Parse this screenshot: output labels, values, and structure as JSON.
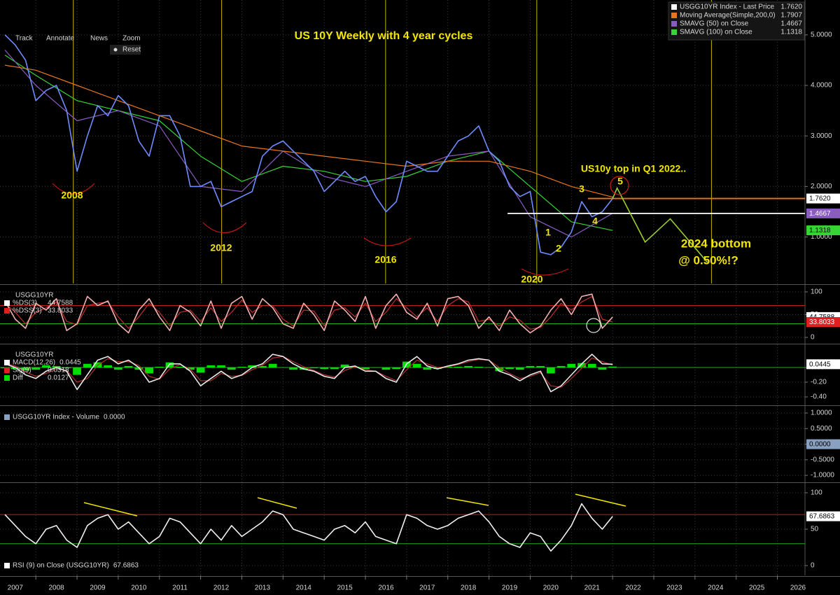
{
  "toolbar": [
    "Track",
    "Annotate",
    "News",
    "Zoom",
    "Reset"
  ],
  "x_axis": {
    "xlim": [
      2007.13,
      2026.67
    ],
    "xticks": [
      2007,
      2008,
      2009,
      2010,
      2011,
      2012,
      2013,
      2014,
      2015,
      2016,
      2017,
      2018,
      2019,
      2020,
      2021,
      2022,
      2023,
      2024,
      2025,
      2026
    ],
    "x": [
      2007.25,
      2007.5,
      2007.75,
      2008,
      2008.25,
      2008.5,
      2008.75,
      2009,
      2009.25,
      2009.5,
      2009.75,
      2010,
      2010.25,
      2010.5,
      2010.75,
      2011,
      2011.25,
      2011.5,
      2011.75,
      2012,
      2012.25,
      2012.5,
      2012.75,
      2013,
      2013.25,
      2013.5,
      2013.75,
      2014,
      2014.25,
      2014.5,
      2014.75,
      2015,
      2015.25,
      2015.5,
      2015.75,
      2016,
      2016.25,
      2016.5,
      2016.75,
      2017,
      2017.25,
      2017.5,
      2017.75,
      2018,
      2018.25,
      2018.5,
      2018.75,
      2019,
      2019.25,
      2019.5,
      2019.75,
      2020,
      2020.25,
      2020.5,
      2020.75,
      2021,
      2021.25,
      2021.5,
      2021.75,
      2022
    ]
  },
  "chart_data": [
    {
      "type": "line",
      "title": "US 10Y Weekly with 4 year cycles",
      "legend": "upper right",
      "grid": true,
      "ylim": [
        0.08,
        5.69
      ],
      "yticks": [
        {
          "value": 1,
          "label": "1.0000"
        },
        {
          "value": 2,
          "label": "2.0000"
        },
        {
          "value": 3,
          "label": "3.0000"
        },
        {
          "value": 4,
          "label": "4.0000"
        },
        {
          "value": 5,
          "label": "5.0000"
        }
      ],
      "series": [
        {
          "name": "USGG10YR Index - Last Price",
          "color": "#ffffff",
          "line_color": "#6f8cff",
          "box": true,
          "last": 1.762,
          "last_label": "1.7620",
          "values": [
            5.0,
            4.8,
            4.5,
            3.7,
            3.9,
            4.0,
            3.5,
            2.3,
            3.0,
            3.6,
            3.4,
            3.8,
            3.6,
            2.9,
            2.6,
            3.4,
            3.4,
            3.0,
            2.0,
            2.0,
            2.1,
            1.6,
            1.7,
            1.8,
            1.9,
            2.6,
            2.8,
            2.9,
            2.7,
            2.5,
            2.3,
            1.9,
            2.1,
            2.3,
            2.1,
            2.2,
            1.8,
            1.5,
            1.7,
            2.5,
            2.4,
            2.3,
            2.3,
            2.6,
            2.9,
            3.0,
            3.2,
            2.7,
            2.5,
            2.0,
            1.8,
            1.9,
            0.7,
            0.65,
            0.8,
            1.1,
            1.7,
            1.4,
            1.5,
            1.76
          ]
        },
        {
          "name": "Moving Average(Simple,200,0)",
          "color": "#e8761e",
          "box": false,
          "last": 1.7907,
          "last_label": "1.7907",
          "x": [
            2007.25,
            2008,
            2009,
            2010,
            2011,
            2012,
            2013,
            2014,
            2015,
            2016,
            2017,
            2018,
            2019,
            2020,
            2021,
            2022
          ],
          "values": [
            4.4,
            4.3,
            4.0,
            3.7,
            3.4,
            3.1,
            2.8,
            2.7,
            2.6,
            2.5,
            2.4,
            2.5,
            2.5,
            2.3,
            2.0,
            1.79
          ]
        },
        {
          "name": "SMAVG (50)  on Close",
          "color": "#8a5cc0",
          "box": true,
          "last": 1.4667,
          "x": [
            2007.25,
            2008,
            2009,
            2010,
            2011,
            2012,
            2013,
            2014,
            2015,
            2016,
            2017,
            2018,
            2019,
            2020,
            2021,
            2022
          ],
          "values": [
            4.7,
            4.0,
            3.3,
            3.5,
            3.2,
            2.0,
            1.9,
            2.7,
            2.2,
            2.0,
            2.3,
            2.6,
            2.7,
            1.4,
            1.0,
            1.47
          ]
        },
        {
          "name": "SMAVG (100)  on Close",
          "color": "#36d436",
          "box": true,
          "last": 1.1318,
          "x": [
            2007.25,
            2008,
            2009,
            2010,
            2011,
            2012,
            2013,
            2014,
            2015,
            2016,
            2017,
            2018,
            2019,
            2020,
            2021,
            2022
          ],
          "values": [
            4.6,
            4.2,
            3.7,
            3.5,
            3.3,
            2.6,
            2.1,
            2.4,
            2.3,
            2.1,
            2.2,
            2.5,
            2.7,
            2.0,
            1.3,
            1.13
          ]
        }
      ],
      "cycle_lines": [
        2008.91,
        2012.51,
        2016.49,
        2020.16,
        2024.4
      ],
      "cycle_color": "#c8b400",
      "hlines": [
        {
          "value": 1.762,
          "x": 2021.4,
          "color": "#e8761e"
        },
        {
          "value": 1.4667,
          "x": 2019.45,
          "color": "#ffffff"
        }
      ],
      "projection": {
        "color": "#9acd32",
        "x": [
          2022,
          2022.11,
          2022.79,
          2023.4,
          2024.3
        ],
        "values": [
          1.76,
          1.97,
          0.9,
          1.36,
          0.5
        ]
      },
      "annotations": [
        "2008",
        "2012",
        "2016",
        "2020",
        "1",
        "2",
        "3",
        "4",
        "5",
        "US10y top in Q1 2022..",
        "2024 bottom",
        "@ 0.50%!?"
      ]
    },
    {
      "type": "line",
      "legend_title": "USGG10YR",
      "legend": "upper left",
      "grid": true,
      "ylim": [
        -12.3,
        113.8
      ],
      "yticks": [
        0,
        50,
        100
      ],
      "levels": [
        {
          "value": 70,
          "color": "#c02020"
        },
        {
          "value": 30,
          "color": "#20b020"
        }
      ],
      "series": [
        {
          "name": "%DS(3)",
          "color": "#ffffff",
          "line_color": "#f4b0b0",
          "box": true,
          "last": 44.7588,
          "values": [
            80,
            40,
            20,
            75,
            60,
            85,
            15,
            30,
            90,
            70,
            80,
            30,
            10,
            60,
            85,
            45,
            15,
            70,
            55,
            25,
            80,
            20,
            75,
            90,
            40,
            85,
            65,
            30,
            20,
            75,
            50,
            15,
            80,
            60,
            35,
            90,
            20,
            70,
            95,
            55,
            40,
            75,
            25,
            85,
            90,
            70,
            20,
            45,
            15,
            60,
            30,
            10,
            25,
            60,
            85,
            50,
            90,
            95,
            20,
            44.7588
          ]
        },
        {
          "name": "%DSS(3)",
          "color": "#e02020",
          "line_color": "#c03030",
          "box": true,
          "last": 33.8033,
          "values": [
            75,
            55,
            30,
            55,
            65,
            78,
            35,
            28,
            70,
            75,
            78,
            45,
            20,
            45,
            75,
            55,
            25,
            55,
            60,
            35,
            65,
            35,
            55,
            82,
            55,
            70,
            70,
            40,
            25,
            60,
            58,
            25,
            60,
            65,
            45,
            75,
            35,
            55,
            85,
            65,
            45,
            65,
            35,
            70,
            85,
            78,
            35,
            40,
            25,
            45,
            38,
            18,
            22,
            45,
            75,
            60,
            78,
            90,
            40,
            33.8033
          ]
        }
      ]
    },
    {
      "type": "line",
      "legend_title": "USGG10YR",
      "legend": "upper left",
      "grid": true,
      "ylim": [
        -0.505,
        0.305
      ],
      "yticks": [
        {
          "value": -0.4,
          "label": "-0.40"
        },
        {
          "value": -0.2,
          "label": "-0.20"
        },
        {
          "value": 0,
          "label": "0.00"
        }
      ],
      "levels": [
        {
          "value": 0,
          "color": "#20b020"
        }
      ],
      "series": [
        {
          "name": "MACD(12,26)",
          "color": "#ffffff",
          "line_color": "#e8e8e8",
          "box": true,
          "last": 0.0445,
          "values": [
            0.05,
            0.0,
            -0.1,
            -0.15,
            -0.05,
            0.0,
            -0.05,
            -0.3,
            -0.1,
            0.1,
            0.15,
            0.05,
            0.1,
            0.0,
            -0.2,
            -0.15,
            0.05,
            0.05,
            -0.05,
            -0.25,
            -0.15,
            -0.05,
            -0.15,
            -0.1,
            0.0,
            0.05,
            0.18,
            0.15,
            0.05,
            -0.02,
            -0.05,
            -0.12,
            -0.15,
            0.0,
            0.02,
            -0.05,
            -0.05,
            -0.15,
            -0.2,
            0.05,
            0.15,
            0.02,
            -0.02,
            0.02,
            0.05,
            0.1,
            0.12,
            0.1,
            -0.05,
            -0.1,
            -0.18,
            -0.1,
            -0.05,
            -0.33,
            -0.25,
            -0.1,
            0.05,
            0.18,
            0.05,
            0.0445
          ]
        },
        {
          "name": "Sig(9)",
          "color": "#e02020",
          "line_color": "#b03030",
          "box": false,
          "last": 0.0318,
          "values": [
            0.06,
            0.02,
            -0.06,
            -0.12,
            -0.08,
            -0.02,
            -0.04,
            -0.2,
            -0.15,
            0.03,
            0.12,
            0.08,
            0.08,
            0.03,
            -0.12,
            -0.16,
            -0.02,
            0.04,
            -0.02,
            -0.18,
            -0.18,
            -0.08,
            -0.12,
            -0.11,
            -0.03,
            0.03,
            0.13,
            0.15,
            0.08,
            0.01,
            -0.04,
            -0.1,
            -0.13,
            -0.04,
            0.01,
            -0.03,
            -0.05,
            -0.12,
            -0.18,
            -0.03,
            0.1,
            0.05,
            0.0,
            0.01,
            0.04,
            0.08,
            0.11,
            0.1,
            0.0,
            -0.08,
            -0.15,
            -0.12,
            -0.07,
            -0.25,
            -0.27,
            -0.15,
            -0.01,
            0.13,
            0.08,
            0.0318
          ]
        },
        {
          "name": "Diff",
          "type": "bar",
          "color": "#00e000",
          "box": false,
          "last": 0.0127,
          "values": [
            -0.01,
            -0.02,
            -0.04,
            -0.03,
            0.03,
            0.02,
            -0.01,
            -0.1,
            0.05,
            0.07,
            0.03,
            -0.03,
            0.02,
            -0.03,
            -0.08,
            0.01,
            0.07,
            0.01,
            -0.03,
            -0.07,
            0.03,
            0.03,
            -0.03,
            0.01,
            0.03,
            0.02,
            0.05,
            0,
            -0.03,
            -0.03,
            -0.01,
            -0.02,
            -0.02,
            0.04,
            0.01,
            -0.02,
            0,
            -0.03,
            -0.02,
            0.08,
            0.05,
            -0.03,
            -0.02,
            0.01,
            0.01,
            0.02,
            0.01,
            0,
            -0.05,
            -0.02,
            -0.03,
            0.02,
            0.02,
            -0.08,
            0.02,
            0.05,
            0.06,
            0.05,
            -0.03,
            0.0127
          ]
        }
      ]
    },
    {
      "type": "line",
      "legend": "upper left",
      "grid": true,
      "ylim": [
        -1.2,
        1.18
      ],
      "yticks": [
        {
          "value": -1,
          "label": "-1.0000"
        },
        {
          "value": -0.5,
          "label": "-0.5000"
        },
        {
          "value": 0,
          "label": "0.0000"
        },
        {
          "value": 0.5,
          "label": "0.5000"
        },
        {
          "value": 1,
          "label": "1.0000"
        }
      ],
      "series": [
        {
          "name": "USGG10YR Index - Volume",
          "color": "#8aa0c0",
          "box": true,
          "last": 0,
          "last_label": "0.0000",
          "values": []
        }
      ]
    },
    {
      "type": "line",
      "legend": "lower left",
      "grid": true,
      "ylim": [
        -13.5,
        111.5
      ],
      "yticks": [
        0,
        50,
        100
      ],
      "levels": [
        {
          "value": 70,
          "color": "#c02020"
        },
        {
          "value": 30,
          "color": "#20b020"
        }
      ],
      "series": [
        {
          "name": "RSI (9)  on Close (USGG10YR)",
          "color": "#ffffff",
          "line_color": "#f0f0f0",
          "box": true,
          "last": 67.6863,
          "values": [
            70,
            55,
            40,
            30,
            50,
            55,
            35,
            25,
            55,
            65,
            70,
            50,
            60,
            45,
            30,
            40,
            65,
            60,
            45,
            30,
            50,
            35,
            55,
            40,
            50,
            60,
            75,
            70,
            50,
            45,
            40,
            35,
            50,
            55,
            45,
            60,
            40,
            35,
            30,
            70,
            65,
            55,
            50,
            55,
            65,
            70,
            75,
            60,
            40,
            30,
            25,
            45,
            40,
            20,
            35,
            55,
            85,
            65,
            50,
            67.6863
          ]
        }
      ]
    }
  ]
}
